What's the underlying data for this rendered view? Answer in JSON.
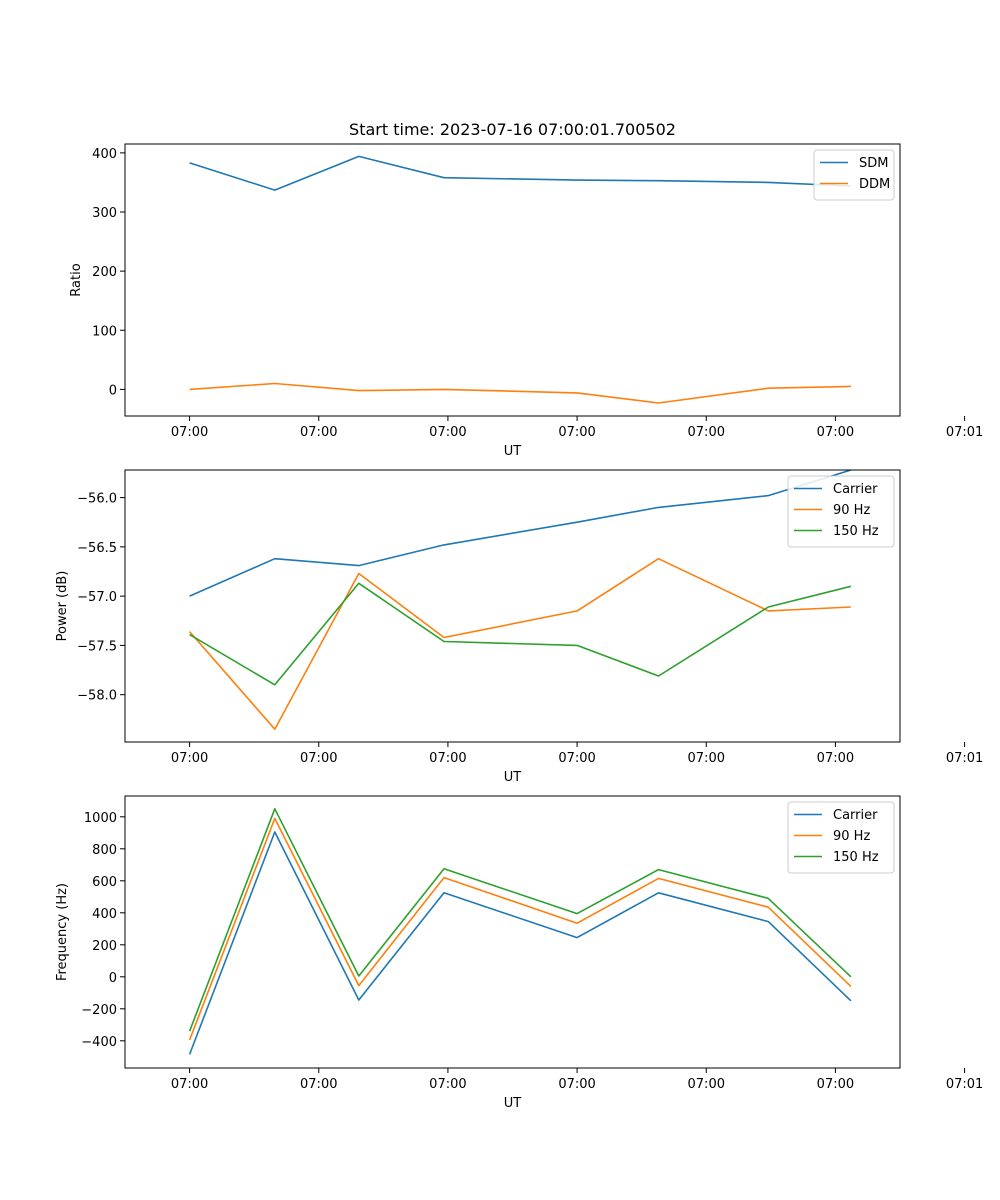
{
  "chart_data": [
    {
      "type": "line",
      "title": "Start time: 2023-07-16 07:00:01.700502",
      "xlabel": "UT",
      "ylabel": "Ratio",
      "xlim": [
        -0.5,
        5.5
      ],
      "x": [
        0,
        0.66,
        1.31,
        1.97,
        3.0,
        3.63,
        4.48,
        5.12
      ],
      "x_tick_values": [
        0,
        1,
        2,
        3,
        4,
        5,
        6
      ],
      "x_tick_labels": [
        "07:00",
        "07:00",
        "07:00",
        "07:00",
        "07:00",
        "07:00",
        "07:01"
      ],
      "ylim": [
        -45,
        415
      ],
      "y_ticks": [
        0,
        100,
        200,
        300,
        400
      ],
      "y_tick_labels": [
        "0",
        "100",
        "200",
        "300",
        "400"
      ],
      "legend": "top-right",
      "series": [
        {
          "name": "SDM",
          "color": "#1f77b4",
          "values": [
            383,
            337,
            394,
            358,
            354,
            353,
            350,
            344
          ]
        },
        {
          "name": "DDM",
          "color": "#ff7f0e",
          "values": [
            0,
            10,
            -2,
            0,
            -6,
            -23,
            2,
            5
          ]
        }
      ]
    },
    {
      "type": "line",
      "title": "",
      "xlabel": "UT",
      "ylabel": "Power (dB)",
      "xlim": [
        -0.5,
        5.5
      ],
      "x": [
        0,
        0.66,
        1.31,
        1.97,
        3.0,
        3.63,
        4.48,
        5.12
      ],
      "x_tick_values": [
        0,
        1,
        2,
        3,
        4,
        5,
        6
      ],
      "x_tick_labels": [
        "07:00",
        "07:00",
        "07:00",
        "07:00",
        "07:00",
        "07:00",
        "07:01"
      ],
      "ylim": [
        -58.48,
        -55.72
      ],
      "y_ticks": [
        -58.0,
        -57.5,
        -57.0,
        -56.5,
        -56.0
      ],
      "y_tick_labels": [
        "−58.0",
        "−57.5",
        "−57.0",
        "−56.5",
        "−56.0"
      ],
      "legend": "top-right",
      "series": [
        {
          "name": "Carrier",
          "color": "#1f77b4",
          "values": [
            -57.0,
            -56.62,
            -56.69,
            -56.48,
            -56.25,
            -56.1,
            -55.98,
            -55.72
          ]
        },
        {
          "name": "90 Hz",
          "color": "#ff7f0e",
          "values": [
            -57.36,
            -58.35,
            -56.77,
            -57.42,
            -57.15,
            -56.62,
            -57.15,
            -57.11
          ]
        },
        {
          "name": "150 Hz",
          "color": "#2ca02c",
          "values": [
            -57.39,
            -57.9,
            -56.87,
            -57.46,
            -57.5,
            -57.81,
            -57.11,
            -56.9
          ]
        }
      ]
    },
    {
      "type": "line",
      "title": "",
      "xlabel": "UT",
      "ylabel": "Frequency (Hz)",
      "xlim": [
        -0.5,
        5.5
      ],
      "x": [
        0,
        0.66,
        1.31,
        1.97,
        3.0,
        3.63,
        4.48,
        5.12
      ],
      "x_tick_values": [
        0,
        1,
        2,
        3,
        4,
        5,
        6
      ],
      "x_tick_labels": [
        "07:00",
        "07:00",
        "07:00",
        "07:00",
        "07:00",
        "07:00",
        "07:01"
      ],
      "ylim": [
        -570,
        1130
      ],
      "y_ticks": [
        -400,
        -200,
        0,
        200,
        400,
        600,
        800,
        1000
      ],
      "y_tick_labels": [
        "−400",
        "−200",
        "0",
        "200",
        "400",
        "600",
        "800",
        "1000"
      ],
      "legend": "top-right",
      "series": [
        {
          "name": "Carrier",
          "color": "#1f77b4",
          "values": [
            -485,
            905,
            -145,
            525,
            245,
            525,
            345,
            -150
          ]
        },
        {
          "name": "90 Hz",
          "color": "#ff7f0e",
          "values": [
            -395,
            990,
            -55,
            620,
            335,
            615,
            435,
            -60
          ]
        },
        {
          "name": "150 Hz",
          "color": "#2ca02c",
          "values": [
            -340,
            1050,
            5,
            675,
            395,
            670,
            490,
            0
          ]
        }
      ]
    }
  ]
}
